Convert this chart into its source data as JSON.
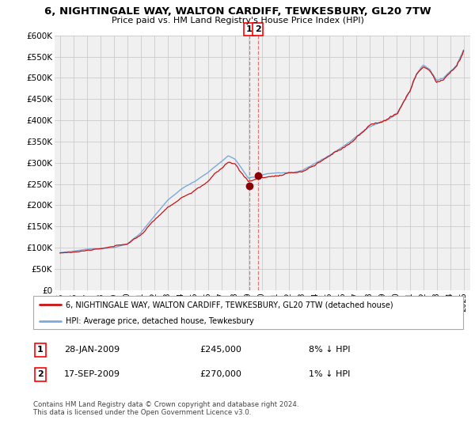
{
  "title": "6, NIGHTINGALE WAY, WALTON CARDIFF, TEWKESBURY, GL20 7TW",
  "subtitle": "Price paid vs. HM Land Registry's House Price Index (HPI)",
  "legend_line1": "6, NIGHTINGALE WAY, WALTON CARDIFF, TEWKESBURY, GL20 7TW (detached house)",
  "legend_line2": "HPI: Average price, detached house, Tewkesbury",
  "transaction1_date": "28-JAN-2009",
  "transaction1_price": "£245,000",
  "transaction1_hpi": "8% ↓ HPI",
  "transaction2_date": "17-SEP-2009",
  "transaction2_price": "£270,000",
  "transaction2_hpi": "1% ↓ HPI",
  "footer": "Contains HM Land Registry data © Crown copyright and database right 2024.\nThis data is licensed under the Open Government Licence v3.0.",
  "hpi_color": "#7aaadd",
  "price_color": "#cc1111",
  "marker_color": "#8b0000",
  "dashed_line_color": "#dd7777",
  "background_color": "#ffffff",
  "grid_color": "#cccccc",
  "ylim_min": 0,
  "ylim_max": 600000,
  "t1_year": 2009.077,
  "t1_price": 245000,
  "t2_year": 2009.714,
  "t2_price": 270000
}
